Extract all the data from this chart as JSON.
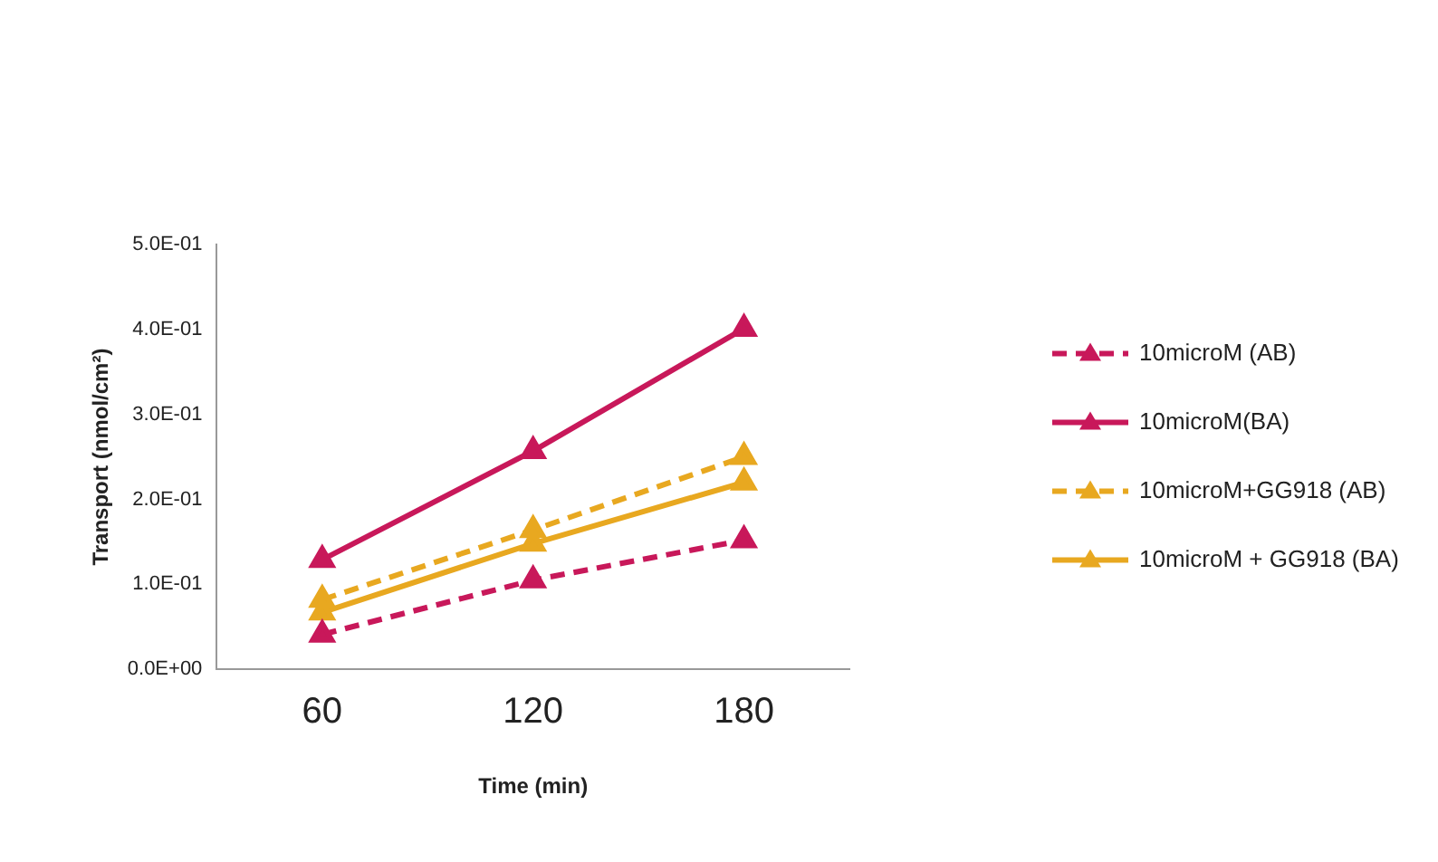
{
  "chart_data": {
    "type": "line",
    "xlabel": "Time (min)",
    "ylabel": "Transport (nmol/cm²)",
    "categories": [
      "60",
      "120",
      "180"
    ],
    "series": [
      {
        "name": "10microM (AB)",
        "color": "#c8185a",
        "line_style": "dashed",
        "values": [
          0.041,
          0.105,
          0.152
        ]
      },
      {
        "name": "10microM(BA)",
        "color": "#c8185a",
        "line_style": "solid",
        "values": [
          0.129,
          0.257,
          0.401
        ]
      },
      {
        "name": "10microM+GG918 (AB)",
        "color": "#e8a820",
        "line_style": "dashed",
        "values": [
          0.082,
          0.164,
          0.25
        ]
      },
      {
        "name": "10microM + GG918 (BA)",
        "color": "#e8a820",
        "line_style": "solid",
        "values": [
          0.067,
          0.148,
          0.22
        ]
      }
    ],
    "ylim": [
      0,
      0.5
    ],
    "yticks": [
      {
        "value": 0,
        "label": "0.0E+00"
      },
      {
        "value": 0.1,
        "label": "1.0E-01"
      },
      {
        "value": 0.2,
        "label": "2.0E-01"
      },
      {
        "value": 0.3,
        "label": "3.0E-01"
      },
      {
        "value": 0.4,
        "label": "4.0E-01"
      },
      {
        "value": 0.5,
        "label": "5.0E-01"
      }
    ],
    "grid": false,
    "legend": "right",
    "marker": "triangle"
  }
}
